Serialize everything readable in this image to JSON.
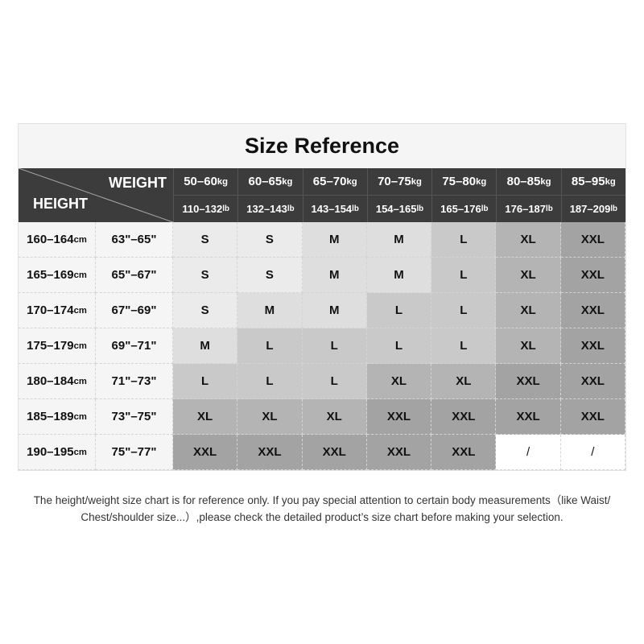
{
  "title": "Size Reference",
  "header": {
    "weight_label": "WEIGHT",
    "height_label": "HEIGHT"
  },
  "weights_kg": [
    {
      "range": "50–60",
      "unit": "kg"
    },
    {
      "range": "60–65",
      "unit": "kg"
    },
    {
      "range": "65–70",
      "unit": "kg"
    },
    {
      "range": "70–75",
      "unit": "kg"
    },
    {
      "range": "75–80",
      "unit": "kg"
    },
    {
      "range": "80–85",
      "unit": "kg"
    },
    {
      "range": "85–95",
      "unit": "kg"
    }
  ],
  "weights_lb": [
    {
      "range": "110–132",
      "unit": "lb"
    },
    {
      "range": "132–143",
      "unit": "lb"
    },
    {
      "range": "143–154",
      "unit": "lb"
    },
    {
      "range": "154–165",
      "unit": "lb"
    },
    {
      "range": "165–176",
      "unit": "lb"
    },
    {
      "range": "176–187",
      "unit": "lb"
    },
    {
      "range": "187–209",
      "unit": "lb"
    }
  ],
  "rows": [
    {
      "cm": "160–164",
      "unit": "cm",
      "inch": "63\"–65\"",
      "sizes": [
        "S",
        "S",
        "M",
        "M",
        "L",
        "XL",
        "XXL"
      ]
    },
    {
      "cm": "165–169",
      "unit": "cm",
      "inch": "65\"–67\"",
      "sizes": [
        "S",
        "S",
        "M",
        "M",
        "L",
        "XL",
        "XXL"
      ]
    },
    {
      "cm": "170–174",
      "unit": "cm",
      "inch": "67\"–69\"",
      "sizes": [
        "S",
        "M",
        "M",
        "L",
        "L",
        "XL",
        "XXL"
      ]
    },
    {
      "cm": "175–179",
      "unit": "cm",
      "inch": "69\"–71\"",
      "sizes": [
        "M",
        "L",
        "L",
        "L",
        "L",
        "XL",
        "XXL"
      ]
    },
    {
      "cm": "180–184",
      "unit": "cm",
      "inch": "71\"–73\"",
      "sizes": [
        "L",
        "L",
        "L",
        "XL",
        "XL",
        "XXL",
        "XXL"
      ]
    },
    {
      "cm": "185–189",
      "unit": "cm",
      "inch": "73\"–75\"",
      "sizes": [
        "XL",
        "XL",
        "XL",
        "XXL",
        "XXL",
        "XXL",
        "XXL"
      ]
    },
    {
      "cm": "190–195",
      "unit": "cm",
      "inch": "75\"–77\"",
      "sizes": [
        "XXL",
        "XXL",
        "XXL",
        "XXL",
        "XXL",
        "/",
        "/"
      ]
    }
  ],
  "size_colors": {
    "S": "#ebebeb",
    "M": "#dedede",
    "L": "#c9c9c9",
    "XL": "#b4b4b4",
    "XXL": "#a3a3a3",
    "/": "#ffffff"
  },
  "note": {
    "line1": "The height/weight size chart is for reference only. If you pay special attention to certain body measurements（like Waist/",
    "line2": "Chest/shoulder size...）,please check the detailed product’s size chart before making your selection."
  }
}
